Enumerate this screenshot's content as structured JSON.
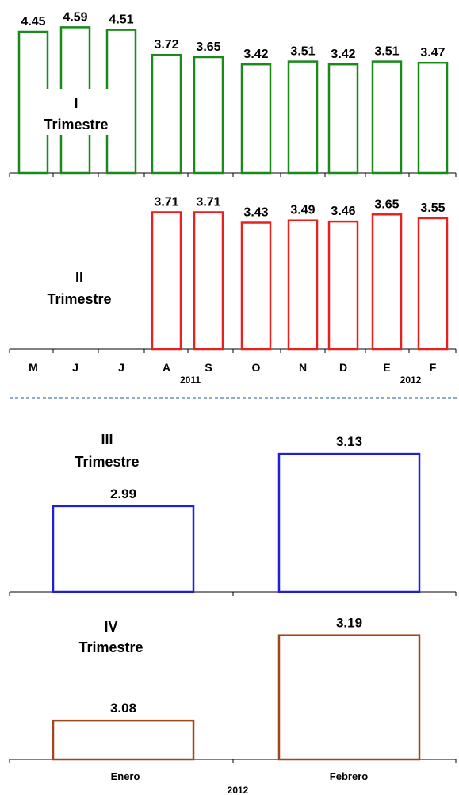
{
  "chart_data": [
    {
      "type": "bar",
      "style": "outline",
      "color": "#1a8a1a",
      "label_lines": [
        "I",
        "Trimestre"
      ],
      "categories": [
        "M",
        "J",
        "J",
        "A",
        "S",
        "O",
        "N",
        "D",
        "E",
        "F"
      ],
      "values": [
        4.45,
        4.59,
        4.51,
        3.72,
        3.65,
        3.42,
        3.51,
        3.42,
        3.51,
        3.47
      ],
      "ylim": [
        0,
        5
      ]
    },
    {
      "type": "bar",
      "style": "outline",
      "color": "#e8201f",
      "label_lines": [
        "II",
        "Trimestre"
      ],
      "categories": [
        "M",
        "J",
        "J",
        "A",
        "S",
        "O",
        "N",
        "D",
        "E",
        "F"
      ],
      "values": [
        null,
        null,
        null,
        3.71,
        3.71,
        3.43,
        3.49,
        3.46,
        3.65,
        3.55
      ],
      "year_labels": [
        "2011",
        "2012"
      ],
      "ylim": [
        0,
        4.5
      ]
    },
    {
      "type": "bar",
      "style": "outline",
      "color": "#1f1fd6",
      "label_lines": [
        "III",
        "Trimestre"
      ],
      "categories": [
        "Enero",
        "Febrero"
      ],
      "values": [
        2.99,
        3.13
      ],
      "ylim": [
        2.76,
        3.175
      ]
    },
    {
      "type": "bar",
      "style": "outline",
      "color": "#a0461e",
      "label_lines": [
        "IV",
        "Trimestre"
      ],
      "categories": [
        "Enero",
        "Febrero"
      ],
      "values": [
        3.08,
        3.19
      ],
      "year_label": "2012",
      "ylim": [
        3.03,
        3.2395
      ]
    }
  ]
}
